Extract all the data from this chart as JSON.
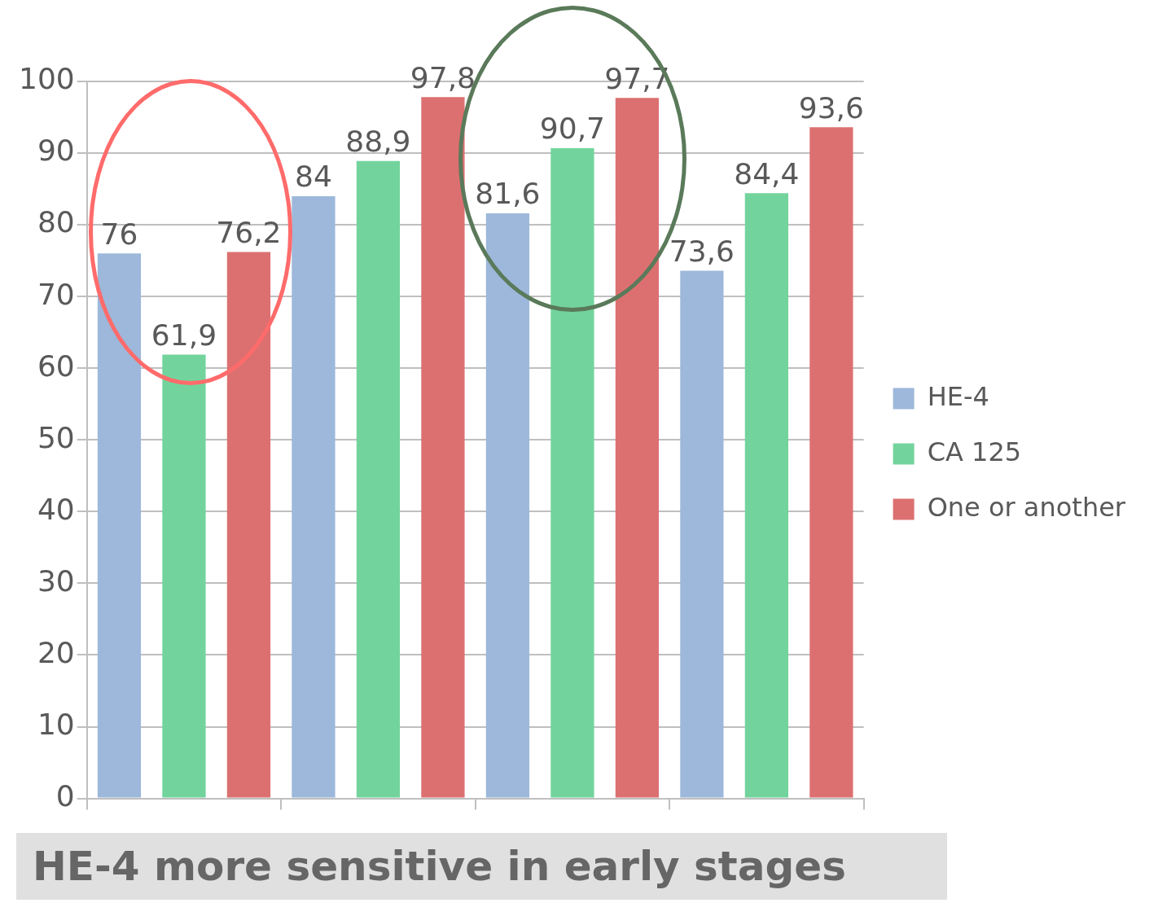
{
  "chart_data": {
    "type": "bar",
    "title": "HE-4 more sensitive in early stages",
    "categories": [
      null,
      null,
      null,
      null
    ],
    "series": [
      {
        "name": "HE-4",
        "color": "#9db8da",
        "values": [
          76,
          84,
          81.6,
          73.6
        ],
        "value_labels": [
          "76",
          "84",
          "81,6",
          "73,6"
        ]
      },
      {
        "name": "CA 125",
        "color": "#72d49c",
        "values": [
          61.9,
          88.9,
          90.7,
          84.4
        ],
        "value_labels": [
          "61,9",
          "88,9",
          "90,7",
          "84,4"
        ]
      },
      {
        "name": "One or another",
        "color": "#dc7070",
        "values": [
          76.2,
          97.8,
          97.7,
          93.6
        ],
        "value_labels": [
          "76,2",
          "97,8",
          "97,7",
          "93,6"
        ]
      }
    ],
    "ylim": [
      0,
      100
    ],
    "yticks": [
      0,
      10,
      20,
      30,
      40,
      50,
      60,
      70,
      80,
      90,
      100
    ],
    "grid": "y",
    "legend": "right"
  }
}
